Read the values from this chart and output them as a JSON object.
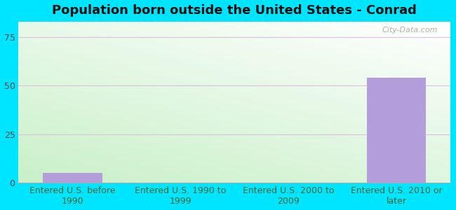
{
  "title": "Population born outside the United States - Conrad",
  "categories": [
    "Entered U.S. before\n1990",
    "Entered U.S. 1990 to\n1999",
    "Entered U.S. 2000 to\n2009",
    "Entered U.S. 2010 or\nlater"
  ],
  "values": [
    5,
    0,
    0,
    54
  ],
  "bar_color": "#b39ddb",
  "ylim": [
    0,
    83
  ],
  "yticks": [
    0,
    25,
    50,
    75
  ],
  "background_outer": "#00e5ff",
  "grid_color": "#ddc0dd",
  "title_fontsize": 13,
  "tick_fontsize": 9,
  "watermark": "City-Data.com",
  "xlim": [
    -0.5,
    3.5
  ]
}
